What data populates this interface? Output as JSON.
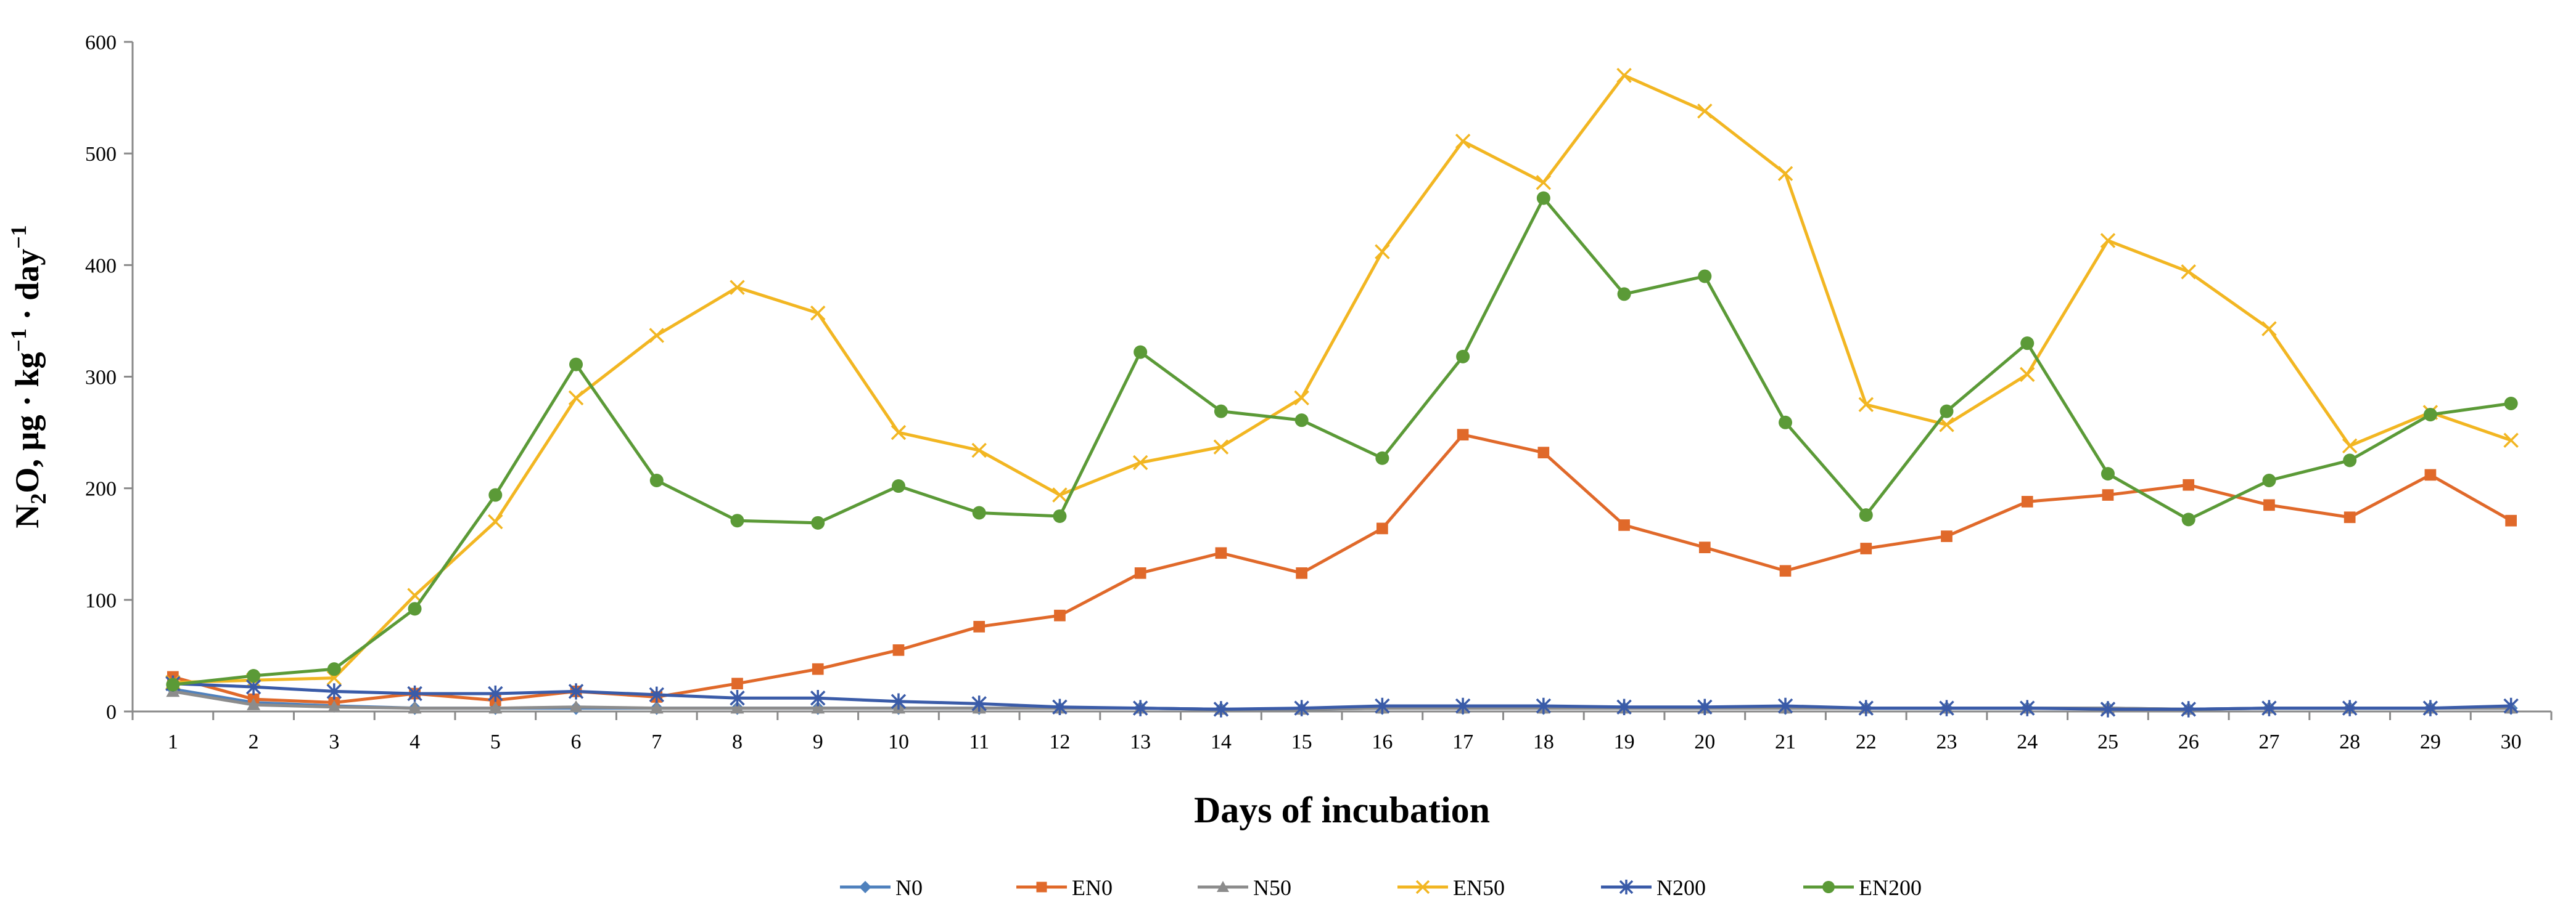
{
  "chart_data": {
    "type": "line",
    "title": "",
    "xlabel": "Days of incubation",
    "ylabel": {
      "prefix": "N",
      "sub": "2",
      "mid": "O, µg · kg",
      "sup1": "−1",
      "mid2": " · day",
      "sup2": "−1"
    },
    "ylim": [
      0,
      600
    ],
    "yticks": [
      0,
      100,
      200,
      300,
      400,
      500,
      600
    ],
    "categories": [
      1,
      2,
      3,
      4,
      5,
      6,
      7,
      8,
      9,
      10,
      11,
      12,
      13,
      14,
      15,
      16,
      17,
      18,
      19,
      20,
      21,
      22,
      23,
      24,
      25,
      26,
      27,
      28,
      29,
      30
    ],
    "grid": false,
    "legend_position": "bottom",
    "series": [
      {
        "name": "N0",
        "color": "#4F81BD",
        "marker": "diamond",
        "values": [
          20,
          8,
          5,
          3,
          3,
          3,
          3,
          3,
          3,
          3,
          3,
          3,
          3,
          2,
          2,
          3,
          3,
          3,
          3,
          3,
          3,
          3,
          3,
          3,
          3,
          2,
          3,
          3,
          3,
          3
        ]
      },
      {
        "name": "EN0",
        "color": "#E0692A",
        "marker": "square",
        "values": [
          31,
          11,
          8,
          16,
          10,
          18,
          13,
          25,
          38,
          55,
          76,
          86,
          124,
          142,
          124,
          164,
          248,
          232,
          167,
          147,
          126,
          146,
          157,
          188,
          194,
          203,
          185,
          174,
          212,
          171
        ]
      },
      {
        "name": "N50",
        "color": "#8C8C8C",
        "marker": "triangle",
        "values": [
          18,
          6,
          4,
          3,
          3,
          4,
          3,
          3,
          3,
          3,
          3,
          3,
          3,
          2,
          2,
          3,
          3,
          3,
          3,
          3,
          3,
          3,
          3,
          3,
          3,
          2,
          3,
          3,
          3,
          3
        ]
      },
      {
        "name": "EN50",
        "color": "#F2B622",
        "marker": "x",
        "values": [
          26,
          28,
          30,
          104,
          170,
          281,
          337,
          380,
          357,
          250,
          234,
          194,
          223,
          237,
          281,
          412,
          511,
          474,
          570,
          538,
          482,
          275,
          257,
          302,
          422,
          394,
          343,
          238,
          268,
          243
        ]
      },
      {
        "name": "N200",
        "color": "#3A5BA8",
        "marker": "asterisk",
        "values": [
          25,
          22,
          18,
          16,
          16,
          18,
          15,
          12,
          12,
          9,
          7,
          4,
          3,
          2,
          3,
          5,
          5,
          5,
          4,
          4,
          5,
          3,
          3,
          3,
          2,
          2,
          3,
          3,
          3,
          5
        ]
      },
      {
        "name": "EN200",
        "color": "#5B9A37",
        "marker": "circle",
        "values": [
          24,
          32,
          38,
          92,
          194,
          311,
          207,
          171,
          169,
          202,
          178,
          175,
          322,
          269,
          261,
          227,
          318,
          460,
          374,
          390,
          259,
          176,
          269,
          330,
          213,
          172,
          207,
          225,
          266,
          276
        ]
      }
    ]
  }
}
